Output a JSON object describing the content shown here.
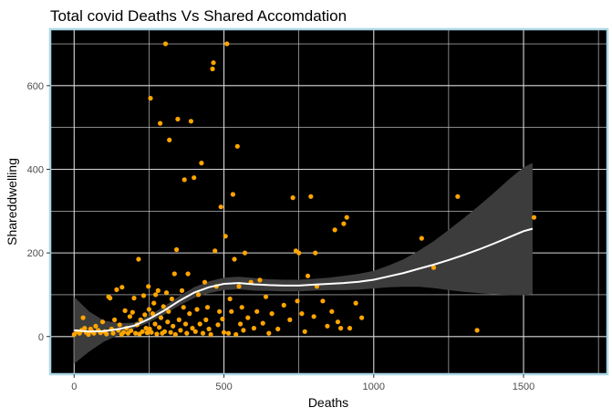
{
  "chart_data": {
    "type": "scatter",
    "title": "Total covid Deaths Vs Shared Accomdation",
    "xlabel": "Deaths",
    "ylabel": "Shareddwelling",
    "xlim": [
      -80,
      1780
    ],
    "ylim": [
      -90,
      735
    ],
    "x_ticks": [
      "0",
      "500",
      "1000",
      "1500"
    ],
    "x_tick_values": [
      0,
      500,
      1000,
      1500
    ],
    "y_ticks": [
      "0",
      "200",
      "400",
      "600"
    ],
    "y_tick_values": [
      0,
      200,
      400,
      600
    ],
    "grid": true,
    "background": "black",
    "colors": {
      "points": "#FFA500",
      "smooth": "#FFFFFF",
      "ribbon": "#3C3C3C",
      "panel_border": "#ADD8E6",
      "grid": "#D9D9D9"
    },
    "points": [
      [
        0,
        5
      ],
      [
        10,
        12
      ],
      [
        18,
        8
      ],
      [
        25,
        15
      ],
      [
        30,
        45
      ],
      [
        35,
        20
      ],
      [
        40,
        10
      ],
      [
        48,
        5
      ],
      [
        55,
        18
      ],
      [
        60,
        12
      ],
      [
        66,
        8
      ],
      [
        72,
        25
      ],
      [
        80,
        15
      ],
      [
        88,
        9
      ],
      [
        95,
        35
      ],
      [
        102,
        12
      ],
      [
        108,
        6
      ],
      [
        115,
        95
      ],
      [
        120,
        92
      ],
      [
        125,
        18
      ],
      [
        130,
        8
      ],
      [
        135,
        40
      ],
      [
        142,
        112
      ],
      [
        148,
        15
      ],
      [
        152,
        28
      ],
      [
        158,
        5
      ],
      [
        160,
        118
      ],
      [
        165,
        10
      ],
      [
        170,
        62
      ],
      [
        175,
        20
      ],
      [
        180,
        8
      ],
      [
        186,
        48
      ],
      [
        190,
        14
      ],
      [
        195,
        58
      ],
      [
        200,
        92
      ],
      [
        205,
        8
      ],
      [
        210,
        28
      ],
      [
        215,
        185
      ],
      [
        218,
        6
      ],
      [
        222,
        40
      ],
      [
        228,
        12
      ],
      [
        232,
        98
      ],
      [
        236,
        52
      ],
      [
        240,
        20
      ],
      [
        244,
        9
      ],
      [
        248,
        120
      ],
      [
        250,
        65
      ],
      [
        252,
        18
      ],
      [
        255,
        570
      ],
      [
        258,
        10
      ],
      [
        262,
        55
      ],
      [
        266,
        80
      ],
      [
        270,
        30
      ],
      [
        272,
        100
      ],
      [
        276,
        6
      ],
      [
        280,
        110
      ],
      [
        284,
        22
      ],
      [
        287,
        510
      ],
      [
        290,
        45
      ],
      [
        294,
        8
      ],
      [
        298,
        72
      ],
      [
        302,
        12
      ],
      [
        305,
        700
      ],
      [
        308,
        105
      ],
      [
        312,
        35
      ],
      [
        315,
        60
      ],
      [
        318,
        470
      ],
      [
        322,
        10
      ],
      [
        326,
        90
      ],
      [
        330,
        25
      ],
      [
        335,
        150
      ],
      [
        338,
        5
      ],
      [
        342,
        208
      ],
      [
        346,
        520
      ],
      [
        350,
        40
      ],
      [
        355,
        15
      ],
      [
        360,
        110
      ],
      [
        365,
        70
      ],
      [
        368,
        375
      ],
      [
        372,
        30
      ],
      [
        376,
        8
      ],
      [
        380,
        150
      ],
      [
        385,
        55
      ],
      [
        390,
        515
      ],
      [
        395,
        20
      ],
      [
        400,
        380
      ],
      [
        405,
        12
      ],
      [
        410,
        65
      ],
      [
        415,
        100
      ],
      [
        420,
        30
      ],
      [
        425,
        415
      ],
      [
        430,
        8
      ],
      [
        436,
        130
      ],
      [
        440,
        40
      ],
      [
        445,
        70
      ],
      [
        450,
        18
      ],
      [
        456,
        5
      ],
      [
        462,
        640
      ],
      [
        465,
        655
      ],
      [
        470,
        205
      ],
      [
        475,
        120
      ],
      [
        480,
        28
      ],
      [
        485,
        60
      ],
      [
        490,
        310
      ],
      [
        495,
        42
      ],
      [
        500,
        10
      ],
      [
        505,
        240
      ],
      [
        510,
        700
      ],
      [
        515,
        8
      ],
      [
        520,
        90
      ],
      [
        525,
        60
      ],
      [
        530,
        340
      ],
      [
        535,
        185
      ],
      [
        540,
        5
      ],
      [
        545,
        455
      ],
      [
        550,
        120
      ],
      [
        555,
        30
      ],
      [
        560,
        70
      ],
      [
        565,
        15
      ],
      [
        570,
        200
      ],
      [
        580,
        45
      ],
      [
        590,
        130
      ],
      [
        600,
        20
      ],
      [
        610,
        60
      ],
      [
        620,
        135
      ],
      [
        630,
        32
      ],
      [
        640,
        95
      ],
      [
        650,
        8
      ],
      [
        660,
        55
      ],
      [
        680,
        18
      ],
      [
        700,
        75
      ],
      [
        720,
        40
      ],
      [
        730,
        332
      ],
      [
        740,
        205
      ],
      [
        745,
        85
      ],
      [
        750,
        200
      ],
      [
        760,
        55
      ],
      [
        770,
        12
      ],
      [
        780,
        145
      ],
      [
        790,
        335
      ],
      [
        800,
        48
      ],
      [
        805,
        200
      ],
      [
        810,
        120
      ],
      [
        830,
        85
      ],
      [
        845,
        25
      ],
      [
        860,
        60
      ],
      [
        870,
        255
      ],
      [
        880,
        35
      ],
      [
        890,
        20
      ],
      [
        900,
        270
      ],
      [
        910,
        285
      ],
      [
        920,
        20
      ],
      [
        940,
        80
      ],
      [
        960,
        45
      ],
      [
        1160,
        235
      ],
      [
        1200,
        165
      ],
      [
        1280,
        335
      ],
      [
        1345,
        15
      ],
      [
        1535,
        285
      ]
    ],
    "smooth_x": [
      0,
      50,
      100,
      150,
      200,
      250,
      300,
      350,
      400,
      450,
      500,
      550,
      600,
      650,
      700,
      750,
      800,
      850,
      900,
      950,
      1000,
      1050,
      1100,
      1150,
      1200,
      1250,
      1300,
      1350,
      1400,
      1450,
      1500,
      1530
    ],
    "smooth_y": [
      15,
      12,
      13,
      18,
      26,
      42,
      62,
      85,
      105,
      118,
      126,
      128,
      125,
      123,
      122,
      122,
      124,
      126,
      128,
      131,
      136,
      144,
      152,
      162,
      172,
      183,
      195,
      208,
      222,
      237,
      252,
      258
    ],
    "ribbon_upper": [
      95,
      60,
      38,
      32,
      33,
      50,
      72,
      96,
      118,
      132,
      141,
      143,
      140,
      137,
      136,
      136,
      138,
      141,
      145,
      150,
      157,
      170,
      185,
      205,
      228,
      255,
      283,
      312,
      343,
      375,
      405,
      415
    ],
    "ribbon_lower": [
      -65,
      -36,
      -12,
      4,
      19,
      34,
      52,
      74,
      92,
      104,
      111,
      113,
      110,
      109,
      108,
      108,
      110,
      111,
      111,
      112,
      115,
      118,
      119,
      119,
      116,
      111,
      107,
      104,
      101,
      99,
      99,
      101
    ]
  }
}
